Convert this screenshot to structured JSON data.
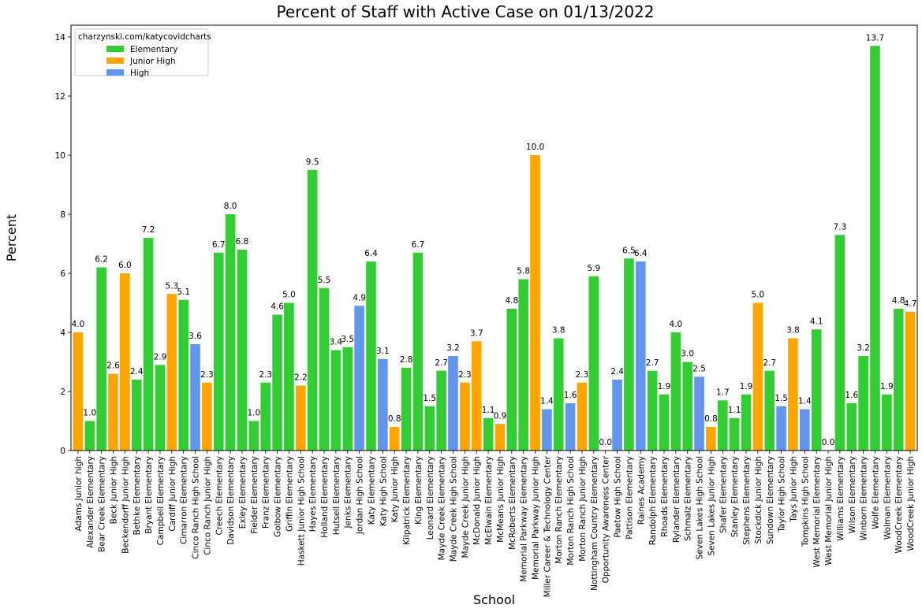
{
  "chart_data": {
    "type": "bar",
    "title": "Percent of Staff with Active Case on 01/13/2022",
    "xlabel": "School",
    "ylabel": "Percent",
    "ylim": [
      0,
      14.4
    ],
    "yticks": [
      0,
      2,
      4,
      6,
      8,
      10,
      12,
      14
    ],
    "grid": false,
    "legend": {
      "title": "charzynski.com/katycovidcharts",
      "placement": "top-left",
      "entries": [
        {
          "name": "Elementary",
          "color": "#32cd32"
        },
        {
          "name": "Junior High",
          "color": "#ffa500"
        },
        {
          "name": "High",
          "color": "#6495ed"
        }
      ]
    },
    "colors": {
      "Elementary": "#32cd32",
      "Junior High": "#ffa500",
      "High": "#6495ed"
    },
    "bars": [
      {
        "school": "Adams Junior high",
        "value": 4.0,
        "label": "4.0",
        "type": "Junior High"
      },
      {
        "school": "Alexander Elementary",
        "value": 1.0,
        "label": "1.0",
        "type": "Elementary"
      },
      {
        "school": "Bear Creek Elementary",
        "value": 6.2,
        "label": "6.2",
        "type": "Elementary"
      },
      {
        "school": "Beck Junior High",
        "value": 2.6,
        "label": "2.6",
        "type": "Junior High"
      },
      {
        "school": "Beckendorff Junior High",
        "value": 6.0,
        "label": "6.0",
        "type": "Junior High"
      },
      {
        "school": "Bethke Elementary",
        "value": 2.4,
        "label": "2.4",
        "type": "Elementary"
      },
      {
        "school": "Bryant Elementary",
        "value": 7.2,
        "label": "7.2",
        "type": "Elementary"
      },
      {
        "school": "Campbell Elementary",
        "value": 2.9,
        "label": "2.9",
        "type": "Elementary"
      },
      {
        "school": "Cardiff Junior High",
        "value": 5.3,
        "label": "5.3",
        "type": "Junior High"
      },
      {
        "school": "Cimarron Elementary",
        "value": 5.1,
        "label": "5.1",
        "type": "Elementary"
      },
      {
        "school": "Cinco Ranch High School",
        "value": 3.6,
        "label": "3.6",
        "type": "High"
      },
      {
        "school": "Cinco Ranch Junior High",
        "value": 2.3,
        "label": "2.3",
        "type": "Junior High"
      },
      {
        "school": "Creech Elementary",
        "value": 6.7,
        "label": "6.7",
        "type": "Elementary"
      },
      {
        "school": "Davidson Elementary",
        "value": 8.0,
        "label": "8.0",
        "type": "Elementary"
      },
      {
        "school": "Exley Elementary",
        "value": 6.8,
        "label": "6.8",
        "type": "Elementary"
      },
      {
        "school": "Fielder Elementary",
        "value": 1.0,
        "label": "1.0",
        "type": "Elementary"
      },
      {
        "school": "Franz Elementary",
        "value": 2.3,
        "label": "2.3",
        "type": "Elementary"
      },
      {
        "school": "Golbow Elementary",
        "value": 4.6,
        "label": "4.6",
        "type": "Elementary"
      },
      {
        "school": "Griffin Elementary",
        "value": 5.0,
        "label": "5.0",
        "type": "Elementary"
      },
      {
        "school": "Haskett Junior High School",
        "value": 2.2,
        "label": "2.2",
        "type": "Junior High"
      },
      {
        "school": "Hayes Elementary",
        "value": 9.5,
        "label": "9.5",
        "type": "Elementary"
      },
      {
        "school": "Holland Elementary",
        "value": 5.5,
        "label": "5.5",
        "type": "Elementary"
      },
      {
        "school": "Hutsell Elementary",
        "value": 3.4,
        "label": "3.4",
        "type": "Elementary"
      },
      {
        "school": "Jenks Elementary",
        "value": 3.5,
        "label": "3.5",
        "type": "Elementary"
      },
      {
        "school": "Jordan High School",
        "value": 4.9,
        "label": "4.9",
        "type": "High"
      },
      {
        "school": "Katy Elementary",
        "value": 6.4,
        "label": "6.4",
        "type": "Elementary"
      },
      {
        "school": "Katy High School",
        "value": 3.1,
        "label": "3.1",
        "type": "High"
      },
      {
        "school": "Katy Junior High",
        "value": 0.8,
        "label": "0.8",
        "type": "Junior High"
      },
      {
        "school": "Kilpatrick Elementary",
        "value": 2.8,
        "label": "2.8",
        "type": "Elementary"
      },
      {
        "school": "King Elementary",
        "value": 6.7,
        "label": "6.7",
        "type": "Elementary"
      },
      {
        "school": "Leonard Elementary",
        "value": 1.5,
        "label": "1.5",
        "type": "Elementary"
      },
      {
        "school": "Mayde Creek Elementary",
        "value": 2.7,
        "label": "2.7",
        "type": "Elementary"
      },
      {
        "school": "Mayde Creek High School",
        "value": 3.2,
        "label": "3.2",
        "type": "High"
      },
      {
        "school": "Mayde Creek Junior High",
        "value": 2.3,
        "label": "2.3",
        "type": "Junior High"
      },
      {
        "school": "McDonald Junior High",
        "value": 3.7,
        "label": "3.7",
        "type": "Junior High"
      },
      {
        "school": "McElwain Elementary",
        "value": 1.1,
        "label": "1.1",
        "type": "Elementary"
      },
      {
        "school": "McMeans Junior High",
        "value": 0.9,
        "label": "0.9",
        "type": "Junior High"
      },
      {
        "school": "McRoberts Elementary",
        "value": 4.8,
        "label": "4.8",
        "type": "Elementary"
      },
      {
        "school": "Memorial Parkway Elementary",
        "value": 5.8,
        "label": "5.8",
        "type": "Elementary"
      },
      {
        "school": "Memorial Parkway Junior High",
        "value": 10.0,
        "label": "10.0",
        "type": "Junior High"
      },
      {
        "school": "Miller Career & Technology Center",
        "value": 1.4,
        "label": "1.4",
        "type": "High"
      },
      {
        "school": "Morton Ranch Elementary",
        "value": 3.8,
        "label": "3.8",
        "type": "Elementary"
      },
      {
        "school": "Morton Ranch High School",
        "value": 1.6,
        "label": "1.6",
        "type": "High"
      },
      {
        "school": "Morton Ranch Junior High",
        "value": 2.3,
        "label": "2.3",
        "type": "Junior High"
      },
      {
        "school": "Nottingham Country Elementary",
        "value": 5.9,
        "label": "5.9",
        "type": "Elementary"
      },
      {
        "school": "Opportunity Awareness Center",
        "value": 0.0,
        "label": "0.0",
        "type": "High"
      },
      {
        "school": "Paetow High School",
        "value": 2.4,
        "label": "2.4",
        "type": "High"
      },
      {
        "school": "Pattison Elementary",
        "value": 6.5,
        "label": "6.5",
        "type": "Elementary"
      },
      {
        "school": "Raines Academy",
        "value": 6.4,
        "label": "6.4",
        "type": "High"
      },
      {
        "school": "Randolph Elementary",
        "value": 2.7,
        "label": "2.7",
        "type": "Elementary"
      },
      {
        "school": "Rhoads Elementary",
        "value": 1.9,
        "label": "1.9",
        "type": "Elementary"
      },
      {
        "school": "Rylander Elementary",
        "value": 4.0,
        "label": "4.0",
        "type": "Elementary"
      },
      {
        "school": "Schmalz Elementary",
        "value": 3.0,
        "label": "3.0",
        "type": "Elementary"
      },
      {
        "school": "Seven Lakes High School",
        "value": 2.5,
        "label": "2.5",
        "type": "High"
      },
      {
        "school": "Seven Lakes Junior High",
        "value": 0.8,
        "label": "0.8",
        "type": "Junior High"
      },
      {
        "school": "Shafer Elementary",
        "value": 1.7,
        "label": "1.7",
        "type": "Elementary"
      },
      {
        "school": "Stanley Elementary",
        "value": 1.1,
        "label": "1.1",
        "type": "Elementary"
      },
      {
        "school": "Stephens Elementary",
        "value": 1.9,
        "label": "1.9",
        "type": "Elementary"
      },
      {
        "school": "Stockdick Junior High",
        "value": 5.0,
        "label": "5.0",
        "type": "Junior High"
      },
      {
        "school": "Sundown Elementary",
        "value": 2.7,
        "label": "2.7",
        "type": "Elementary"
      },
      {
        "school": "Taylor High School",
        "value": 1.5,
        "label": "1.5",
        "type": "High"
      },
      {
        "school": "Tays Junior High",
        "value": 3.8,
        "label": "3.8",
        "type": "Junior High"
      },
      {
        "school": "Tompkins High School",
        "value": 1.4,
        "label": "1.4",
        "type": "High"
      },
      {
        "school": "West Memorial Elementary",
        "value": 4.1,
        "label": "4.1",
        "type": "Elementary"
      },
      {
        "school": "West Memorial Junior High",
        "value": 0.0,
        "label": "0.0",
        "type": "Junior High"
      },
      {
        "school": "Williams Elementary",
        "value": 7.3,
        "label": "7.3",
        "type": "Elementary"
      },
      {
        "school": "Wilson Elementary",
        "value": 1.6,
        "label": "1.6",
        "type": "Elementary"
      },
      {
        "school": "Winborn Elementary",
        "value": 3.2,
        "label": "3.2",
        "type": "Elementary"
      },
      {
        "school": "Wolfe Elementary",
        "value": 13.7,
        "label": "13.7",
        "type": "Elementary"
      },
      {
        "school": "Wolman Elementary",
        "value": 1.9,
        "label": "1.9",
        "type": "Elementary"
      },
      {
        "school": "WoodCreek Elementary",
        "value": 4.8,
        "label": "4.8",
        "type": "Elementary"
      },
      {
        "school": "WoodCreek Junior High",
        "value": 4.7,
        "label": "4.7",
        "type": "Junior High"
      }
    ]
  }
}
